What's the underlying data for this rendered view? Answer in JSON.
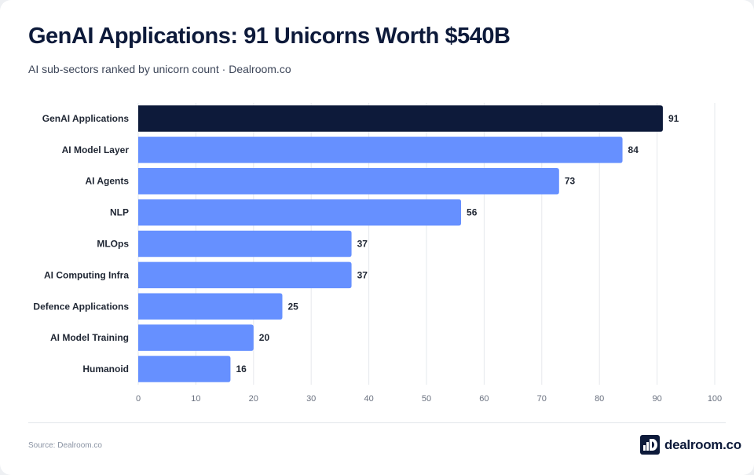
{
  "header": {
    "title": "GenAI Applications: 91 Unicorns Worth $540B",
    "subtitle": "AI sub-sectors ranked by unicorn count · Dealroom.co"
  },
  "footer": {
    "source": "Source: Dealroom.co",
    "logo_text": "dealroom.co"
  },
  "colors": {
    "highlight": "#0d1a3a",
    "bar": "#6690ff"
  },
  "chart_data": {
    "type": "bar",
    "orientation": "horizontal",
    "title": "GenAI Applications: 91 Unicorns Worth $540B",
    "subtitle": "AI sub-sectors ranked by unicorn count · Dealroom.co",
    "xlabel": "",
    "ylabel": "",
    "categories": [
      "GenAI Applications",
      "AI Model Layer",
      "AI Agents",
      "NLP",
      "MLOps",
      "AI Computing Infra",
      "Defence Applications",
      "AI Model Training",
      "Humanoid"
    ],
    "values": [
      91,
      84,
      73,
      56,
      37,
      37,
      25,
      20,
      16
    ],
    "highlight_index": 0,
    "xlim": [
      0,
      100
    ],
    "xticks": [
      0,
      10,
      20,
      30,
      40,
      50,
      60,
      70,
      80,
      90,
      100
    ],
    "grid": true
  }
}
